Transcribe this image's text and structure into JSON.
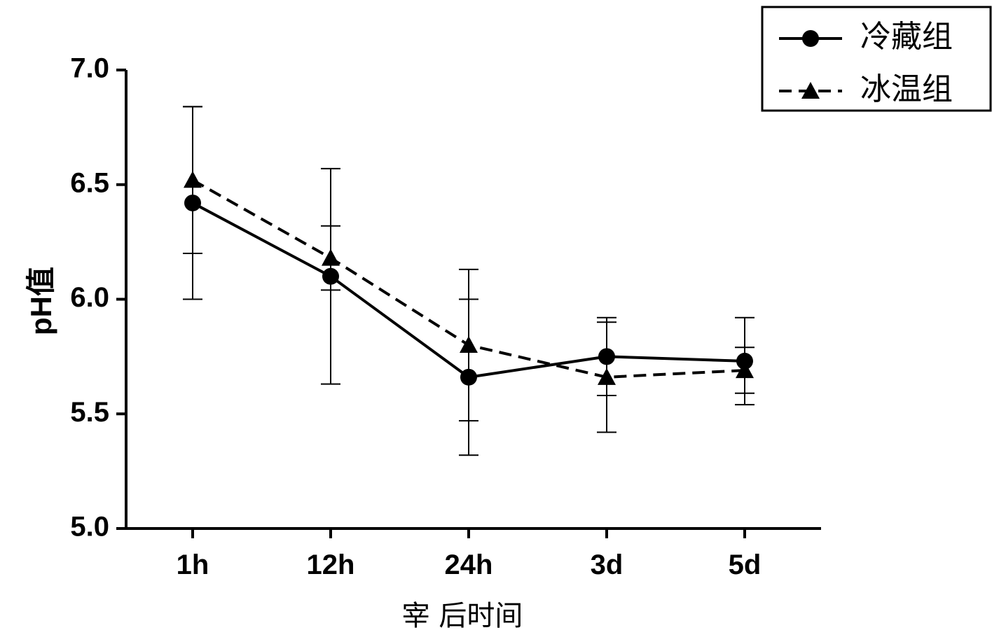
{
  "chart_data": {
    "type": "line",
    "title": "",
    "xlabel": "宰 后时间",
    "ylabel": "pH值",
    "categories": [
      "1h",
      "12h",
      "24h",
      "3d",
      "5d"
    ],
    "ylim": [
      5.0,
      7.0
    ],
    "yticks": [
      "5.0",
      "5.5",
      "6.0",
      "6.5",
      "7.0"
    ],
    "legend_position": "top-right",
    "series": [
      {
        "name": "冷藏组",
        "marker": "circle",
        "line_style": "solid",
        "values": [
          6.42,
          6.1,
          5.66,
          5.75,
          5.73
        ],
        "error": [
          0.42,
          0.47,
          0.34,
          0.17,
          0.19
        ]
      },
      {
        "name": "冰温组",
        "marker": "triangle",
        "line_style": "dashed",
        "values": [
          6.52,
          6.18,
          5.8,
          5.66,
          5.69
        ],
        "error": [
          0.32,
          0.14,
          0.33,
          0.24,
          0.1
        ]
      }
    ]
  }
}
